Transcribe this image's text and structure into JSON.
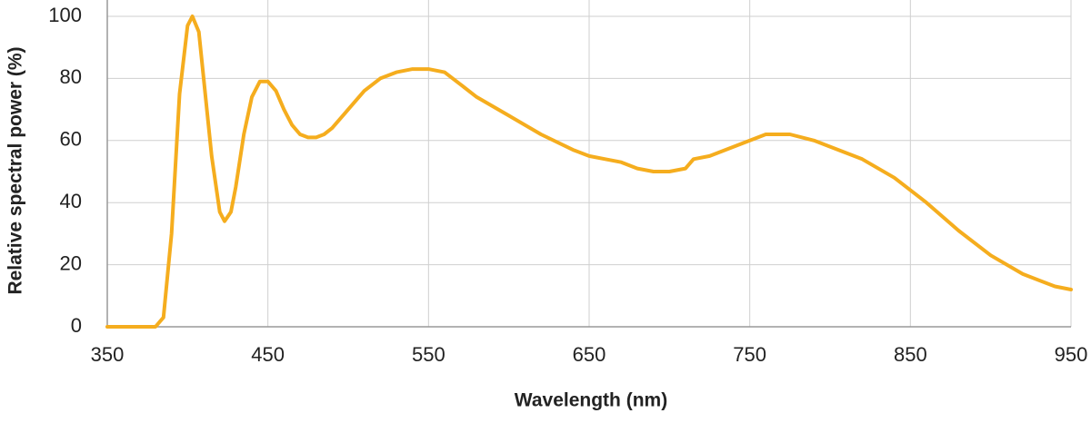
{
  "chart_data": {
    "type": "line",
    "x_label": "Wavelength (nm)",
    "y_label": "Relative spectral power (%)",
    "x": [
      350,
      380,
      385,
      390,
      395,
      400,
      403,
      407,
      410,
      415,
      420,
      423,
      427,
      430,
      435,
      440,
      445,
      450,
      455,
      460,
      465,
      470,
      475,
      480,
      485,
      490,
      500,
      510,
      520,
      530,
      540,
      550,
      560,
      570,
      580,
      600,
      620,
      640,
      650,
      660,
      670,
      680,
      690,
      700,
      710,
      715,
      725,
      740,
      760,
      775,
      790,
      800,
      820,
      840,
      860,
      880,
      900,
      920,
      940,
      950
    ],
    "series": [
      {
        "color": "#f5ad1e",
        "values": [
          0,
          0,
          3,
          30,
          75,
          97,
          100,
          95,
          80,
          55,
          37,
          34,
          37,
          45,
          62,
          74,
          79,
          79,
          76,
          70,
          65,
          62,
          61,
          61,
          62,
          64,
          70,
          76,
          80,
          82,
          83,
          83,
          82,
          78,
          74,
          68,
          62,
          57,
          55,
          54,
          53,
          51,
          50,
          50,
          51,
          54,
          55,
          58,
          62,
          62,
          60,
          58,
          54,
          48,
          40,
          31,
          23,
          17,
          13,
          12
        ]
      }
    ],
    "xlim": [
      350,
      950
    ],
    "xticks": [
      350,
      450,
      550,
      650,
      750,
      850,
      950
    ],
    "ylim": [
      0,
      100
    ],
    "yticks": [
      0,
      20,
      40,
      60,
      80,
      100
    ],
    "grid": true
  }
}
